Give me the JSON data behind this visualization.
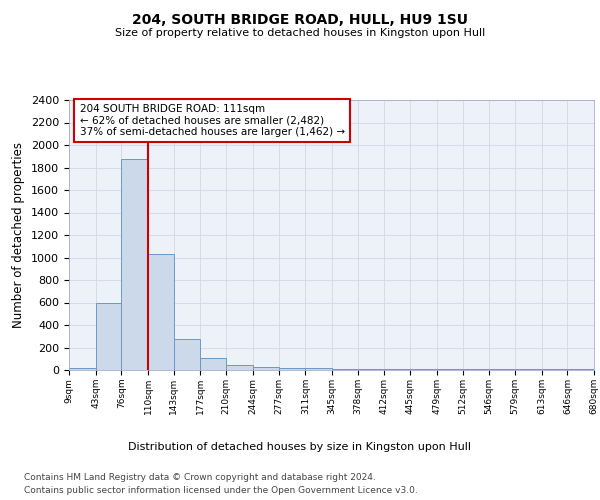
{
  "title1": "204, SOUTH BRIDGE ROAD, HULL, HU9 1SU",
  "title2": "Size of property relative to detached houses in Kingston upon Hull",
  "xlabel": "Distribution of detached houses by size in Kingston upon Hull",
  "ylabel": "Number of detached properties",
  "bar_color": "#ccd9ea",
  "bar_edge_color": "#6699cc",
  "bin_edges": [
    9,
    43,
    76,
    110,
    143,
    177,
    210,
    244,
    277,
    311,
    345,
    378,
    412,
    445,
    479,
    512,
    546,
    579,
    613,
    646,
    680
  ],
  "bar_heights": [
    20,
    600,
    1880,
    1030,
    280,
    110,
    45,
    30,
    20,
    20,
    5,
    5,
    5,
    5,
    5,
    5,
    5,
    5,
    5,
    5
  ],
  "red_line_x": 110,
  "ylim": [
    0,
    2400
  ],
  "yticks": [
    0,
    200,
    400,
    600,
    800,
    1000,
    1200,
    1400,
    1600,
    1800,
    2000,
    2200,
    2400
  ],
  "annotation_title": "204 SOUTH BRIDGE ROAD: 111sqm",
  "annotation_line1": "← 62% of detached houses are smaller (2,482)",
  "annotation_line2": "37% of semi-detached houses are larger (1,462) →",
  "footer1": "Contains HM Land Registry data © Crown copyright and database right 2024.",
  "footer2": "Contains public sector information licensed under the Open Government Licence v3.0.",
  "background_color": "#edf1f8",
  "tick_labels": [
    "9sqm",
    "43sqm",
    "76sqm",
    "110sqm",
    "143sqm",
    "177sqm",
    "210sqm",
    "244sqm",
    "277sqm",
    "311sqm",
    "345sqm",
    "378sqm",
    "412sqm",
    "445sqm",
    "479sqm",
    "512sqm",
    "546sqm",
    "579sqm",
    "613sqm",
    "646sqm",
    "680sqm"
  ]
}
